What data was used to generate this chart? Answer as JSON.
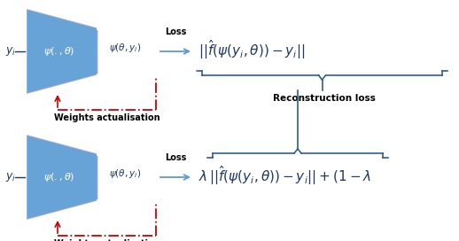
{
  "bg_color": "#ffffff",
  "blue_color": "#5b9bd5",
  "blue_dark": "#2e5f8a",
  "red_color": "#cc0000",
  "arrow_color": "#5b9bd5",
  "text_color": "#1f3864",
  "top_yi": "$y_i$",
  "top_psi_label": "$\\psi(.,\\theta)$",
  "top_output": "$\\psi(\\theta,y_i)$",
  "top_loss_label": "Loss",
  "top_weights_label": "Weights actualisation",
  "top_formula": "$||\\hat{f}(\\psi(y_i,\\theta))-y_i||$",
  "top_brace_label": "Reconstruction loss",
  "bot_yi": "$y_i$",
  "bot_psi_label": "$\\psi(.,\\theta)$",
  "bot_output": "$\\psi(\\theta,y_i)$",
  "bot_loss_label": "Loss",
  "bot_weights_label": "Weights actualisation",
  "bot_formula": "$\\lambda\\,||\\hat{f}(\\psi(y_i,\\theta))-y_i|| + (1-\\lambda$",
  "fig_width": 5.18,
  "fig_height": 2.72,
  "dpi": 100
}
